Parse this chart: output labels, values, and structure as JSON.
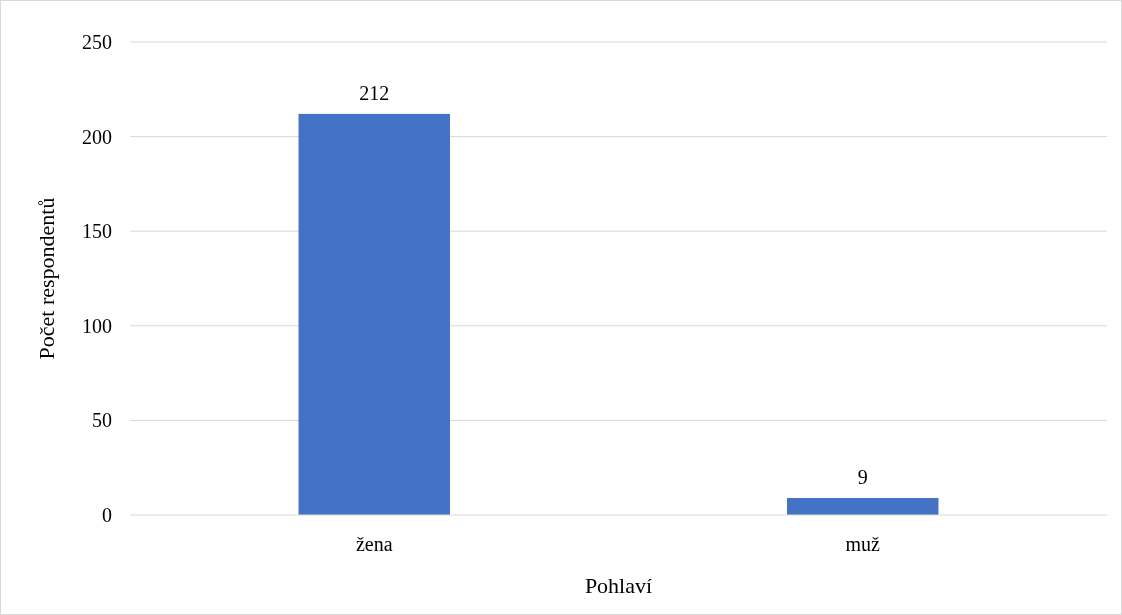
{
  "chart_data": {
    "type": "bar",
    "xlabel": "Pohlaví",
    "ylabel": "Počet respondentů",
    "categories": [
      "žena",
      "muž"
    ],
    "values": [
      212,
      9
    ],
    "color": "#4472c4",
    "ylim": [
      0,
      250
    ],
    "yticks": [
      0,
      50,
      100,
      150,
      200,
      250
    ],
    "grid": "y",
    "data_labels": true
  }
}
